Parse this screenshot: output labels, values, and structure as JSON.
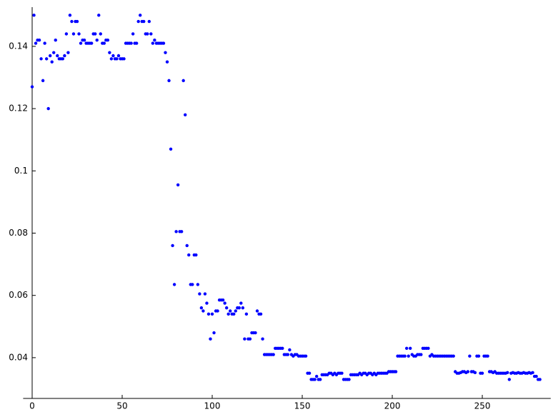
{
  "chart_data": {
    "type": "scatter",
    "color": "#0000ff",
    "xlim": [
      -5,
      288
    ],
    "ylim": [
      0.0269,
      0.1526
    ],
    "xticks": [
      0,
      50,
      100,
      150,
      200,
      250
    ],
    "yticks": [
      0.04,
      0.06,
      0.08,
      0.1,
      0.12,
      0.14
    ],
    "x": [
      0,
      1,
      2,
      3,
      4,
      5,
      6,
      7,
      8,
      9,
      10,
      11,
      12,
      13,
      14,
      15,
      16,
      17,
      18,
      19,
      20,
      21,
      22,
      23,
      24,
      25,
      26,
      27,
      28,
      29,
      30,
      31,
      32,
      33,
      34,
      35,
      36,
      37,
      38,
      39,
      40,
      41,
      42,
      43,
      44,
      45,
      46,
      47,
      48,
      49,
      50,
      51,
      52,
      53,
      54,
      55,
      56,
      57,
      58,
      59,
      60,
      61,
      62,
      63,
      64,
      65,
      66,
      67,
      68,
      69,
      70,
      71,
      72,
      73,
      74,
      75,
      76,
      77,
      78,
      79,
      80,
      81,
      82,
      83,
      84,
      85,
      86,
      87,
      88,
      89,
      90,
      91,
      92,
      93,
      94,
      95,
      96,
      97,
      98,
      99,
      100,
      101,
      102,
      103,
      104,
      105,
      106,
      107,
      108,
      109,
      110,
      111,
      112,
      113,
      114,
      115,
      116,
      117,
      118,
      119,
      120,
      121,
      122,
      123,
      124,
      125,
      126,
      127,
      128,
      129,
      130,
      131,
      132,
      133,
      134,
      135,
      136,
      137,
      138,
      139,
      140,
      141,
      142,
      143,
      144,
      145,
      146,
      147,
      148,
      149,
      150,
      151,
      152,
      153,
      154,
      155,
      156,
      157,
      158,
      159,
      160,
      161,
      162,
      163,
      164,
      165,
      166,
      167,
      168,
      169,
      170,
      171,
      172,
      173,
      174,
      175,
      176,
      177,
      178,
      179,
      180,
      181,
      182,
      183,
      184,
      185,
      186,
      187,
      188,
      189,
      190,
      191,
      192,
      193,
      194,
      195,
      196,
      197,
      198,
      199,
      200,
      201,
      202,
      203,
      204,
      205,
      206,
      207,
      208,
      209,
      210,
      211,
      212,
      213,
      214,
      215,
      216,
      217,
      218,
      219,
      220,
      221,
      222,
      223,
      224,
      225,
      226,
      227,
      228,
      229,
      230,
      231,
      232,
      233,
      234,
      235,
      236,
      237,
      238,
      239,
      240,
      241,
      242,
      243,
      244,
      245,
      246,
      247,
      248,
      249,
      250,
      251,
      252,
      253,
      254,
      255,
      256,
      257,
      258,
      259,
      260,
      261,
      262,
      263,
      264,
      265,
      266,
      267,
      268,
      269,
      270,
      271,
      272,
      273,
      274,
      275,
      276,
      277,
      278,
      279,
      280,
      281,
      282
    ],
    "values": [
      0.127,
      0.15,
      0.141,
      0.142,
      0.142,
      0.136,
      0.129,
      0.141,
      0.136,
      0.12,
      0.137,
      0.135,
      0.138,
      0.142,
      0.137,
      0.136,
      0.136,
      0.136,
      0.137,
      0.144,
      0.138,
      0.15,
      0.148,
      0.144,
      0.148,
      0.148,
      0.144,
      0.141,
      0.142,
      0.142,
      0.141,
      0.141,
      0.141,
      0.141,
      0.144,
      0.144,
      0.142,
      0.15,
      0.144,
      0.141,
      0.141,
      0.142,
      0.142,
      0.138,
      0.136,
      0.137,
      0.136,
      0.136,
      0.137,
      0.136,
      0.136,
      0.136,
      0.141,
      0.141,
      0.141,
      0.141,
      0.144,
      0.141,
      0.141,
      0.148,
      0.15,
      0.148,
      0.148,
      0.144,
      0.144,
      0.148,
      0.144,
      0.141,
      0.142,
      0.141,
      0.141,
      0.141,
      0.141,
      0.141,
      0.138,
      0.135,
      0.129,
      0.107,
      0.076,
      0.0635,
      0.0805,
      0.0955,
      0.0805,
      0.0805,
      0.129,
      0.118,
      0.076,
      0.073,
      0.0635,
      0.0635,
      0.073,
      0.073,
      0.0635,
      0.0605,
      0.056,
      0.055,
      0.0605,
      0.0575,
      0.054,
      0.046,
      0.054,
      0.048,
      0.055,
      0.055,
      0.0585,
      0.0585,
      0.0585,
      0.0575,
      0.056,
      0.054,
      0.055,
      0.054,
      0.054,
      0.055,
      0.056,
      0.056,
      0.0575,
      0.056,
      0.046,
      0.054,
      0.046,
      0.046,
      0.048,
      0.048,
      0.048,
      0.055,
      0.054,
      0.054,
      0.046,
      0.041,
      0.041,
      0.041,
      0.041,
      0.041,
      0.041,
      0.043,
      0.043,
      0.043,
      0.043,
      0.043,
      0.041,
      0.041,
      0.041,
      0.0425,
      0.041,
      0.0405,
      0.041,
      0.041,
      0.0405,
      0.0405,
      0.0405,
      0.0405,
      0.0405,
      0.035,
      0.035,
      0.033,
      0.033,
      0.033,
      0.034,
      0.033,
      0.033,
      0.0345,
      0.0345,
      0.0345,
      0.0345,
      0.035,
      0.035,
      0.0345,
      0.035,
      0.0345,
      0.035,
      0.035,
      0.035,
      0.033,
      0.033,
      0.033,
      0.033,
      0.0345,
      0.0345,
      0.0345,
      0.0345,
      0.0345,
      0.035,
      0.0345,
      0.035,
      0.035,
      0.0345,
      0.035,
      0.035,
      0.0345,
      0.035,
      0.0345,
      0.035,
      0.035,
      0.035,
      0.035,
      0.035,
      0.035,
      0.0355,
      0.0355,
      0.0355,
      0.0355,
      0.0355,
      0.0405,
      0.0405,
      0.0405,
      0.0405,
      0.0405,
      0.043,
      0.0405,
      0.043,
      0.041,
      0.0405,
      0.0405,
      0.041,
      0.041,
      0.041,
      0.043,
      0.043,
      0.043,
      0.043,
      0.0405,
      0.041,
      0.0405,
      0.0405,
      0.0405,
      0.0405,
      0.0405,
      0.0405,
      0.0405,
      0.0405,
      0.0405,
      0.0405,
      0.0405,
      0.0405,
      0.0355,
      0.035,
      0.035,
      0.0352,
      0.0355,
      0.0355,
      0.0352,
      0.0355,
      0.0405,
      0.0355,
      0.0355,
      0.0352,
      0.0405,
      0.0405,
      0.035,
      0.035,
      0.0405,
      0.0405,
      0.0405,
      0.0355,
      0.0355,
      0.0352,
      0.0355,
      0.035,
      0.035,
      0.035,
      0.035,
      0.035,
      0.035,
      0.0352,
      0.033,
      0.035,
      0.0352,
      0.035,
      0.035,
      0.0352,
      0.035,
      0.035,
      0.0352,
      0.035,
      0.035,
      0.0352,
      0.035,
      0.0352,
      0.034,
      0.034,
      0.033,
      0.033
    ]
  }
}
